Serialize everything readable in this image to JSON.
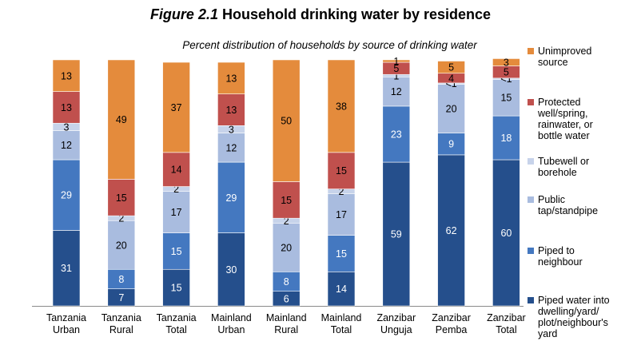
{
  "title": {
    "prefix": "Figure 2.1",
    "text": "Household drinking water by residence"
  },
  "subtitle": "Percent distribution of households by source of drinking water",
  "colors": {
    "piped_dwelling": "#254F8C",
    "piped_neighbour": "#4478C0",
    "public_tap": "#A9BCDF",
    "tubewell": "#C7D3EA",
    "protected": "#C0504D",
    "unimproved": "#E48B3C"
  },
  "legend": [
    {
      "key": "unimproved",
      "label": "Unimproved\nsource"
    },
    {
      "key": "protected",
      "label": "Protected\nwell/spring,\nrainwater, or\nbottle water"
    },
    {
      "key": "tubewell",
      "label": "Tubewell or\nborehole"
    },
    {
      "key": "public_tap",
      "label": "Public\ntap/standpipe"
    },
    {
      "key": "piped_neighbour",
      "label": "Piped to\nneighbour"
    },
    {
      "key": "piped_dwelling",
      "label": "Piped water into\ndwelling/yard/\nplot/neighbour's\nyard"
    }
  ],
  "chart_data": {
    "type": "bar",
    "stacked": true,
    "title": "Household drinking water by residence",
    "subtitle": "Percent distribution of households by source of drinking water",
    "ylim": [
      0,
      100
    ],
    "categories": [
      "Tanzania\nUrban",
      "Tanzania\nRural",
      "Tanzania\nTotal",
      "Mainland\nUrban",
      "Mainland\nRural",
      "Mainland\nTotal",
      "Zanzibar\nUnguja",
      "Zanzibar\nPemba",
      "Zanzibar\nTotal"
    ],
    "series": [
      {
        "name": "Piped water into dwelling/yard/plot/neighbour's yard",
        "key": "piped_dwelling",
        "values": [
          31,
          7,
          15,
          30,
          6,
          14,
          59,
          62,
          60
        ],
        "labels": [
          "31",
          "7",
          "15",
          "30",
          "6",
          "14",
          "59",
          "62",
          "60"
        ]
      },
      {
        "name": "Piped to neighbour",
        "key": "piped_neighbour",
        "values": [
          29,
          8,
          15,
          29,
          8,
          15,
          23,
          9,
          18
        ],
        "labels": [
          "29",
          "8",
          "15",
          "29",
          "8",
          "15",
          "23",
          "9",
          "18"
        ]
      },
      {
        "name": "Public tap/standpipe",
        "key": "public_tap",
        "values": [
          12,
          20,
          17,
          12,
          20,
          17,
          12,
          20,
          15
        ],
        "labels": [
          "12",
          "20",
          "17",
          "12",
          "20",
          "17",
          "12",
          "20",
          "15"
        ]
      },
      {
        "name": "Tubewell or borehole",
        "key": "tubewell",
        "values": [
          3,
          2,
          2,
          3,
          2,
          2,
          1,
          0.5,
          0.5
        ],
        "labels": [
          "3",
          "2",
          "2",
          "3",
          "2",
          "2",
          "1",
          "<1",
          "<1"
        ]
      },
      {
        "name": "Protected well/spring, rainwater, or bottle water",
        "key": "protected",
        "values": [
          13,
          15,
          14,
          13,
          15,
          15,
          5,
          4,
          5
        ],
        "labels": [
          "13",
          "15",
          "14",
          "13",
          "15",
          "15",
          "5",
          "4",
          "5"
        ]
      },
      {
        "name": "Unimproved source",
        "key": "unimproved",
        "values": [
          13,
          49,
          37,
          13,
          50,
          38,
          1,
          5,
          3
        ],
        "labels": [
          "13",
          "49",
          "37",
          "13",
          "50",
          "38",
          "1",
          "5",
          "3"
        ]
      }
    ]
  }
}
